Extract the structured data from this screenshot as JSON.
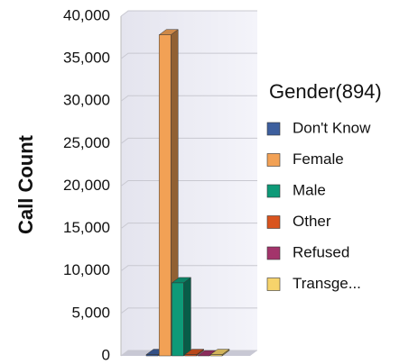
{
  "chart_data": {
    "type": "bar3d",
    "y_label": "Call Count",
    "legend_title": "Gender(894)",
    "series": [
      {
        "name": "Don't Know",
        "color": "#3d5f9e",
        "values": [
          150
        ]
      },
      {
        "name": "Female",
        "color": "#f2a155",
        "values": [
          37800
        ]
      },
      {
        "name": "Male",
        "color": "#0e9a78",
        "values": [
          8600
        ]
      },
      {
        "name": "Other",
        "color": "#d9541e",
        "values": [
          150
        ]
      },
      {
        "name": "Refused",
        "color": "#a3346b",
        "values": [
          0
        ]
      },
      {
        "name": "Transge...",
        "color": "#f6d36b",
        "values": [
          150
        ]
      }
    ],
    "ylim": [
      0,
      40000
    ],
    "yticks": [
      0,
      {
        "value": 5000,
        "label": "5,000"
      },
      {
        "value": 10000,
        "label": "10,000"
      },
      {
        "value": 15000,
        "label": "15,000"
      },
      {
        "value": 20000,
        "label": "20,000"
      },
      {
        "value": 25000,
        "label": "25,000"
      },
      {
        "value": 30000,
        "label": "30,000"
      },
      {
        "value": 35000,
        "label": "35,000"
      },
      {
        "value": 40000,
        "label": "40,000"
      }
    ],
    "grid": true
  }
}
